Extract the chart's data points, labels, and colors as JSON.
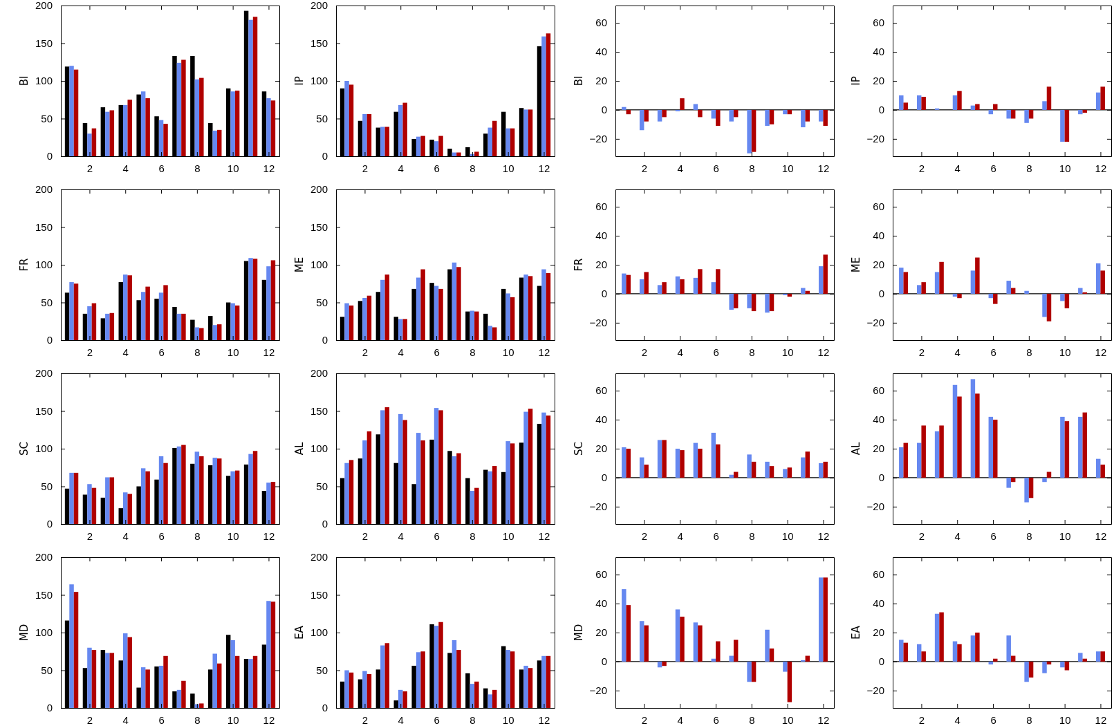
{
  "chart_data": [
    {
      "type": "bar",
      "ylabel": "BI",
      "x": [
        1,
        2,
        3,
        4,
        5,
        6,
        7,
        8,
        9,
        10,
        11,
        12
      ],
      "xlim": [
        0.4,
        12.6
      ],
      "xticks": [
        2,
        4,
        6,
        8,
        10,
        12
      ],
      "ylim": [
        0,
        200
      ],
      "yticks": [
        0,
        50,
        100,
        150,
        200
      ],
      "series": [
        {
          "color": "#000000",
          "values": [
            119,
            44,
            65,
            68,
            82,
            53,
            133,
            133,
            44,
            90,
            193,
            86
          ]
        },
        {
          "color": "#6688f0",
          "values": [
            120,
            30,
            59,
            68,
            86,
            48,
            124,
            102,
            34,
            86,
            181,
            77
          ]
        },
        {
          "color": "#b00000",
          "values": [
            115,
            37,
            61,
            75,
            77,
            43,
            128,
            104,
            35,
            87,
            185,
            74
          ]
        }
      ]
    },
    {
      "type": "bar",
      "ylabel": "IP",
      "x": [
        1,
        2,
        3,
        4,
        5,
        6,
        7,
        8,
        9,
        10,
        11,
        12
      ],
      "xlim": [
        0.4,
        12.6
      ],
      "xticks": [
        2,
        4,
        6,
        8,
        10,
        12
      ],
      "ylim": [
        0,
        200
      ],
      "yticks": [
        0,
        50,
        100,
        150,
        200
      ],
      "series": [
        {
          "color": "#000000",
          "values": [
            90,
            47,
            38,
            59,
            23,
            22,
            10,
            12,
            30,
            59,
            64,
            146
          ]
        },
        {
          "color": "#6688f0",
          "values": [
            100,
            56,
            39,
            68,
            26,
            20,
            5,
            3,
            38,
            37,
            62,
            159
          ]
        },
        {
          "color": "#b00000",
          "values": [
            95,
            56,
            39,
            71,
            27,
            27,
            5,
            6,
            47,
            37,
            62,
            163
          ]
        }
      ]
    },
    {
      "type": "bar",
      "ylabel": "BI",
      "x": [
        1,
        2,
        3,
        4,
        5,
        6,
        7,
        8,
        9,
        10,
        11,
        12
      ],
      "xlim": [
        0.4,
        12.6
      ],
      "xticks": [
        2,
        4,
        6,
        8,
        10,
        12
      ],
      "ylim": [
        -32,
        72
      ],
      "yticks": [
        -20,
        0,
        20,
        40,
        60
      ],
      "ref_lines": [
        {
          "axis": "y",
          "value": 0,
          "color": "#000000"
        }
      ],
      "series": [
        {
          "color": "#6688f0",
          "values": [
            2,
            -14,
            -8,
            -1,
            4,
            -6,
            -8,
            -30,
            -11,
            -3,
            -12,
            -8
          ]
        },
        {
          "color": "#b00000",
          "values": [
            -3,
            -8,
            -5,
            8,
            -5,
            -11,
            -5,
            -29,
            -10,
            -3,
            -8,
            -11
          ]
        }
      ]
    },
    {
      "type": "bar",
      "ylabel": "IP",
      "x": [
        1,
        2,
        3,
        4,
        5,
        6,
        7,
        8,
        9,
        10,
        11,
        12
      ],
      "xlim": [
        0.4,
        12.6
      ],
      "xticks": [
        2,
        4,
        6,
        8,
        10,
        12
      ],
      "ylim": [
        -32,
        72
      ],
      "yticks": [
        -20,
        0,
        20,
        40,
        60
      ],
      "ref_lines": [
        {
          "axis": "y",
          "value": 0,
          "color": "#000000"
        }
      ],
      "series": [
        {
          "color": "#6688f0",
          "values": [
            10,
            10,
            1,
            10,
            3,
            -3,
            -6,
            -9,
            6,
            -22,
            -3,
            12
          ]
        },
        {
          "color": "#b00000",
          "values": [
            5,
            9,
            0,
            13,
            4,
            4,
            -6,
            -6,
            16,
            -22,
            -2,
            16
          ]
        }
      ]
    },
    {
      "type": "bar",
      "ylabel": "FR",
      "x": [
        1,
        2,
        3,
        4,
        5,
        6,
        7,
        8,
        9,
        10,
        11,
        12
      ],
      "xlim": [
        0.4,
        12.6
      ],
      "xticks": [
        2,
        4,
        6,
        8,
        10,
        12
      ],
      "ylim": [
        0,
        200
      ],
      "yticks": [
        0,
        50,
        100,
        150,
        200
      ],
      "series": [
        {
          "color": "#000000",
          "values": [
            63,
            35,
            29,
            77,
            53,
            55,
            44,
            27,
            32,
            50,
            105,
            80
          ]
        },
        {
          "color": "#6688f0",
          "values": [
            77,
            45,
            35,
            87,
            64,
            63,
            35,
            17,
            20,
            49,
            109,
            98
          ]
        },
        {
          "color": "#b00000",
          "values": [
            75,
            49,
            36,
            86,
            71,
            73,
            35,
            16,
            21,
            46,
            108,
            106
          ]
        }
      ]
    },
    {
      "type": "bar",
      "ylabel": "ME",
      "x": [
        1,
        2,
        3,
        4,
        5,
        6,
        7,
        8,
        9,
        10,
        11,
        12
      ],
      "xlim": [
        0.4,
        12.6
      ],
      "xticks": [
        2,
        4,
        6,
        8,
        10,
        12
      ],
      "ylim": [
        0,
        200
      ],
      "yticks": [
        0,
        50,
        100,
        150,
        200
      ],
      "series": [
        {
          "color": "#000000",
          "values": [
            31,
            52,
            64,
            31,
            68,
            76,
            94,
            38,
            35,
            68,
            83,
            72
          ]
        },
        {
          "color": "#6688f0",
          "values": [
            49,
            56,
            80,
            28,
            83,
            72,
            103,
            39,
            19,
            62,
            87,
            94
          ]
        },
        {
          "color": "#b00000",
          "values": [
            46,
            59,
            87,
            28,
            94,
            68,
            97,
            38,
            17,
            57,
            85,
            89
          ]
        }
      ]
    },
    {
      "type": "bar",
      "ylabel": "FR",
      "x": [
        1,
        2,
        3,
        4,
        5,
        6,
        7,
        8,
        9,
        10,
        11,
        12
      ],
      "xlim": [
        0.4,
        12.6
      ],
      "xticks": [
        2,
        4,
        6,
        8,
        10,
        12
      ],
      "ylim": [
        -32,
        72
      ],
      "yticks": [
        -20,
        0,
        20,
        40,
        60
      ],
      "ref_lines": [
        {
          "axis": "y",
          "value": 0,
          "color": "#000000"
        }
      ],
      "series": [
        {
          "color": "#6688f0",
          "values": [
            14,
            10,
            6,
            12,
            11,
            8,
            -11,
            -10,
            -13,
            -1,
            4,
            19
          ]
        },
        {
          "color": "#b00000",
          "values": [
            13,
            15,
            8,
            10,
            17,
            17,
            -10,
            -12,
            -12,
            -2,
            2,
            27
          ]
        }
      ]
    },
    {
      "type": "bar",
      "ylabel": "ME",
      "x": [
        1,
        2,
        3,
        4,
        5,
        6,
        7,
        8,
        9,
        10,
        11,
        12
      ],
      "xlim": [
        0.4,
        12.6
      ],
      "xticks": [
        2,
        4,
        6,
        8,
        10,
        12
      ],
      "ylim": [
        -32,
        72
      ],
      "yticks": [
        -20,
        0,
        20,
        40,
        60
      ],
      "ref_lines": [
        {
          "axis": "y",
          "value": 0,
          "color": "#000000"
        }
      ],
      "series": [
        {
          "color": "#6688f0",
          "values": [
            18,
            6,
            15,
            -2,
            16,
            -3,
            9,
            2,
            -16,
            -5,
            4,
            21
          ]
        },
        {
          "color": "#b00000",
          "values": [
            15,
            8,
            22,
            -3,
            25,
            -7,
            4,
            0,
            -19,
            -10,
            1,
            16
          ]
        }
      ]
    },
    {
      "type": "bar",
      "ylabel": "SC",
      "x": [
        1,
        2,
        3,
        4,
        5,
        6,
        7,
        8,
        9,
        10,
        11,
        12
      ],
      "xlim": [
        0.4,
        12.6
      ],
      "xticks": [
        2,
        4,
        6,
        8,
        10,
        12
      ],
      "ylim": [
        0,
        200
      ],
      "yticks": [
        0,
        50,
        100,
        150,
        200
      ],
      "series": [
        {
          "color": "#000000",
          "values": [
            47,
            39,
            35,
            21,
            50,
            59,
            101,
            80,
            78,
            64,
            79,
            44
          ]
        },
        {
          "color": "#6688f0",
          "values": [
            68,
            53,
            62,
            42,
            74,
            90,
            103,
            96,
            88,
            70,
            93,
            55
          ]
        },
        {
          "color": "#b00000",
          "values": [
            68,
            48,
            62,
            40,
            70,
            81,
            105,
            90,
            87,
            71,
            97,
            56
          ]
        }
      ]
    },
    {
      "type": "bar",
      "ylabel": "AL",
      "x": [
        1,
        2,
        3,
        4,
        5,
        6,
        7,
        8,
        9,
        10,
        11,
        12
      ],
      "xlim": [
        0.4,
        12.6
      ],
      "xticks": [
        2,
        4,
        6,
        8,
        10,
        12
      ],
      "ylim": [
        0,
        200
      ],
      "yticks": [
        0,
        50,
        100,
        150,
        200
      ],
      "series": [
        {
          "color": "#000000",
          "values": [
            61,
            87,
            119,
            81,
            53,
            112,
            97,
            61,
            72,
            69,
            108,
            133
          ]
        },
        {
          "color": "#6688f0",
          "values": [
            81,
            111,
            151,
            146,
            121,
            154,
            90,
            44,
            70,
            110,
            149,
            148
          ]
        },
        {
          "color": "#b00000",
          "values": [
            85,
            123,
            155,
            138,
            111,
            151,
            94,
            48,
            77,
            107,
            153,
            144
          ]
        }
      ]
    },
    {
      "type": "bar",
      "ylabel": "SC",
      "x": [
        1,
        2,
        3,
        4,
        5,
        6,
        7,
        8,
        9,
        10,
        11,
        12
      ],
      "xlim": [
        0.4,
        12.6
      ],
      "xticks": [
        2,
        4,
        6,
        8,
        10,
        12
      ],
      "ylim": [
        -32,
        72
      ],
      "yticks": [
        -20,
        0,
        20,
        40,
        60
      ],
      "ref_lines": [
        {
          "axis": "y",
          "value": 0,
          "color": "#000000"
        }
      ],
      "series": [
        {
          "color": "#6688f0",
          "values": [
            21,
            14,
            26,
            20,
            24,
            31,
            2,
            16,
            11,
            6,
            14,
            10
          ]
        },
        {
          "color": "#b00000",
          "values": [
            20,
            9,
            26,
            19,
            20,
            23,
            4,
            11,
            8,
            7,
            18,
            11
          ]
        }
      ]
    },
    {
      "type": "bar",
      "ylabel": "AL",
      "x": [
        1,
        2,
        3,
        4,
        5,
        6,
        7,
        8,
        9,
        10,
        11,
        12
      ],
      "xlim": [
        0.4,
        12.6
      ],
      "xticks": [
        2,
        4,
        6,
        8,
        10,
        12
      ],
      "ylim": [
        -32,
        72
      ],
      "yticks": [
        -20,
        0,
        20,
        40,
        60
      ],
      "ref_lines": [
        {
          "axis": "y",
          "value": 0,
          "color": "#000000"
        }
      ],
      "series": [
        {
          "color": "#6688f0",
          "values": [
            21,
            24,
            32,
            64,
            68,
            42,
            -7,
            -17,
            -3,
            42,
            42,
            13
          ]
        },
        {
          "color": "#b00000",
          "values": [
            24,
            36,
            36,
            56,
            58,
            40,
            -3,
            -14,
            4,
            39,
            45,
            9
          ]
        }
      ]
    },
    {
      "type": "bar",
      "ylabel": "MD",
      "x": [
        1,
        2,
        3,
        4,
        5,
        6,
        7,
        8,
        9,
        10,
        11,
        12
      ],
      "xlim": [
        0.4,
        12.6
      ],
      "xticks": [
        2,
        4,
        6,
        8,
        10,
        12
      ],
      "ylim": [
        0,
        200
      ],
      "yticks": [
        0,
        50,
        100,
        150,
        200
      ],
      "series": [
        {
          "color": "#000000",
          "values": [
            116,
            53,
            77,
            63,
            27,
            55,
            22,
            19,
            51,
            97,
            65,
            84
          ]
        },
        {
          "color": "#6688f0",
          "values": [
            164,
            80,
            73,
            99,
            54,
            56,
            24,
            5,
            72,
            90,
            65,
            142
          ]
        },
        {
          "color": "#b00000",
          "values": [
            154,
            77,
            73,
            94,
            51,
            69,
            36,
            6,
            59,
            69,
            69,
            141
          ]
        }
      ]
    },
    {
      "type": "bar",
      "ylabel": "EA",
      "x": [
        1,
        2,
        3,
        4,
        5,
        6,
        7,
        8,
        9,
        10,
        11,
        12
      ],
      "xlim": [
        0.4,
        12.6
      ],
      "xticks": [
        2,
        4,
        6,
        8,
        10,
        12
      ],
      "ylim": [
        0,
        200
      ],
      "yticks": [
        0,
        50,
        100,
        150,
        200
      ],
      "series": [
        {
          "color": "#000000",
          "values": [
            35,
            38,
            51,
            10,
            56,
            111,
            73,
            46,
            26,
            82,
            51,
            63
          ]
        },
        {
          "color": "#6688f0",
          "values": [
            50,
            49,
            83,
            24,
            74,
            109,
            90,
            32,
            18,
            77,
            56,
            69
          ]
        },
        {
          "color": "#b00000",
          "values": [
            47,
            45,
            86,
            22,
            75,
            114,
            77,
            35,
            24,
            75,
            53,
            69
          ]
        }
      ]
    },
    {
      "type": "bar",
      "ylabel": "MD",
      "x": [
        1,
        2,
        3,
        4,
        5,
        6,
        7,
        8,
        9,
        10,
        11,
        12
      ],
      "xlim": [
        0.4,
        12.6
      ],
      "xticks": [
        2,
        4,
        6,
        8,
        10,
        12
      ],
      "ylim": [
        -32,
        72
      ],
      "yticks": [
        -20,
        0,
        20,
        40,
        60
      ],
      "ref_lines": [
        {
          "axis": "y",
          "value": 0,
          "color": "#000000"
        }
      ],
      "series": [
        {
          "color": "#6688f0",
          "values": [
            50,
            28,
            -4,
            36,
            27,
            2,
            4,
            -14,
            22,
            -7,
            1,
            58
          ]
        },
        {
          "color": "#b00000",
          "values": [
            39,
            25,
            -3,
            31,
            25,
            14,
            15,
            -14,
            9,
            -28,
            4,
            58
          ]
        }
      ]
    },
    {
      "type": "bar",
      "ylabel": "EA",
      "x": [
        1,
        2,
        3,
        4,
        5,
        6,
        7,
        8,
        9,
        10,
        11,
        12
      ],
      "xlim": [
        0.4,
        12.6
      ],
      "xticks": [
        2,
        4,
        6,
        8,
        10,
        12
      ],
      "ylim": [
        -32,
        72
      ],
      "yticks": [
        -20,
        0,
        20,
        40,
        60
      ],
      "ref_lines": [
        {
          "axis": "y",
          "value": 0,
          "color": "#000000"
        }
      ],
      "series": [
        {
          "color": "#6688f0",
          "values": [
            15,
            12,
            33,
            14,
            18,
            -2,
            18,
            -14,
            -8,
            -4,
            6,
            7
          ]
        },
        {
          "color": "#b00000",
          "values": [
            13,
            7,
            34,
            12,
            20,
            2,
            4,
            -11,
            -2,
            -6,
            2,
            7
          ]
        }
      ]
    }
  ]
}
